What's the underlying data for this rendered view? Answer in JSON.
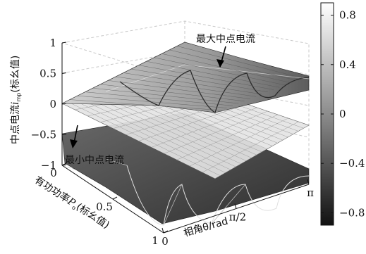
{
  "chart_data": {
    "type": "surface3d",
    "zlabel": "中点电流",
    "zlabel_symbol": "i",
    "zlabel_sub": "mp",
    "zlabel_unit": "(标幺值)",
    "xlabel": "有功功率",
    "xlabel_symbol": "P",
    "xlabel_sub": "o",
    "xlabel_unit": "(标幺值)",
    "ylabel": "相角θ/rad",
    "z_ticks": [
      "1",
      "0.5",
      "0",
      "−0.5",
      "−1"
    ],
    "z_ticks_values": [
      1,
      0.5,
      0,
      -0.5,
      -1
    ],
    "x_ticks": [
      "0",
      "0.5",
      "1"
    ],
    "x_ticks_values": [
      0,
      0.5,
      1
    ],
    "y_ticks": [
      "0",
      "π/2",
      "π"
    ],
    "y_ticks_values": [
      0,
      1.5708,
      3.1416
    ],
    "xlim": [
      0,
      1
    ],
    "ylim": [
      0,
      3.1416
    ],
    "zlim": [
      -1,
      1
    ],
    "grid": true,
    "annotations": [
      {
        "text": "最大中点电流",
        "target": "upper surface"
      },
      {
        "text": "最小中点电流",
        "target": "lower surface"
      }
    ],
    "colorbar": {
      "position": "right",
      "colormap": "gray",
      "range": [
        -0.9,
        0.9
      ],
      "ticks": [
        "0.8",
        "0.4",
        "0",
        "−0.4",
        "−0.8"
      ],
      "ticks_values": [
        0.8,
        0.4,
        0,
        -0.4,
        -0.8
      ]
    },
    "surfaces": [
      {
        "name": "最大中点电流",
        "values": [
          0,
          0.5,
          0.9
        ]
      },
      {
        "name": "最小中点电流",
        "values": [
          0,
          -0.5,
          -0.9
        ]
      }
    ]
  }
}
